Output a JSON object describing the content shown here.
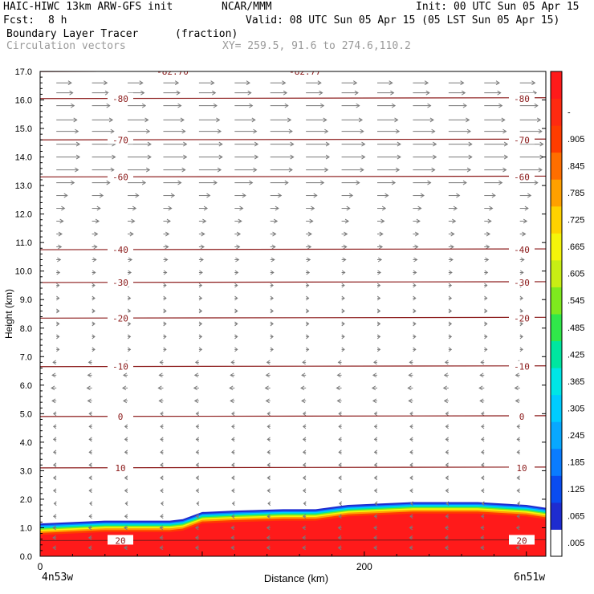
{
  "header": {
    "model": "HAIC-HIWC 13km ARW-GFS init",
    "org": "NCAR/MMM",
    "init": "Init: 00 UTC Sun 05 Apr 15",
    "fcst_label": "Fcst:",
    "fcst_value": "8 h",
    "valid": "Valid: 08 UTC Sun 05 Apr 15 (05 LST Sun 05 Apr 15)",
    "field": "Boundary Layer Tracer",
    "field_units": "(fraction)",
    "vectors": "Circulation vectors",
    "xy": "XY= 259.5, 91.6 to 274.6,110.2"
  },
  "colors": {
    "contour": "#8b1a1a",
    "vector": "#7a7a7a",
    "frame": "#000000"
  },
  "chart_data": {
    "type": "heatmap",
    "xlabel": "Distance (km)",
    "ylabel": "Height (km)",
    "xlim": [
      0,
      312
    ],
    "ylim": [
      0,
      17
    ],
    "x_ticks": [
      0,
      200
    ],
    "x_tick_labels": [
      "0",
      "200"
    ],
    "x_end_labels": [
      "4n53w",
      "6n51w"
    ],
    "y_ticks": [
      0.0,
      1.0,
      2.0,
      3.0,
      4.0,
      5.0,
      6.0,
      7.0,
      8.0,
      9.0,
      10.0,
      11.0,
      12.0,
      13.0,
      14.0,
      15.0,
      16.0,
      17.0
    ],
    "y_tick_labels": [
      "0.0",
      "1.0",
      "2.0",
      "3.0",
      "4.0",
      "5.0",
      "6.0",
      "7.0",
      "8.0",
      "9.0",
      "10.0",
      "11.0",
      "12.0",
      "13.0",
      "14.0",
      "15.0",
      "16.0",
      "17.0"
    ],
    "colorbar": {
      "labels": [
        ".005",
        ".065",
        ".125",
        ".185",
        ".245",
        ".305",
        ".365",
        ".425",
        ".485",
        ".545",
        ".605",
        ".665",
        ".725",
        ".785",
        ".845",
        ".905",
        "-"
      ],
      "colors": [
        "#ffffff",
        "#1e2cd0",
        "#0a4cf0",
        "#0a7cff",
        "#08a8ff",
        "#00ccff",
        "#00e6e6",
        "#00e6a0",
        "#30e84a",
        "#7eea1e",
        "#c8ee14",
        "#f5f50a",
        "#ffd200",
        "#ffa000",
        "#ff6e00",
        "#ff3c00",
        "#ff2a10",
        "#ff1a1a"
      ]
    },
    "tracer_top_km": {
      "x": [
        0,
        40,
        80,
        88,
        100,
        120,
        150,
        170,
        190,
        230,
        270,
        300,
        312
      ],
      "top": [
        1.15,
        1.25,
        1.25,
        1.3,
        1.55,
        1.6,
        1.65,
        1.65,
        1.8,
        1.9,
        1.9,
        1.8,
        1.7
      ]
    },
    "isotherms": [
      {
        "label": "-82.70",
        "y": 17.0
      },
      {
        "label": "-82.77",
        "y": 17.0
      },
      {
        "label": "-80",
        "y": 16.05
      },
      {
        "label": "-70",
        "y": 14.6
      },
      {
        "label": "-60",
        "y": 13.3
      },
      {
        "label": "-40",
        "y": 10.75
      },
      {
        "label": "-30",
        "y": 9.6
      },
      {
        "label": "-20",
        "y": 8.35
      },
      {
        "label": "-10",
        "y": 6.65
      },
      {
        "label": "0",
        "y": 4.9
      },
      {
        "label": "10",
        "y": 3.1
      },
      {
        "label": "20",
        "y": 0.55
      }
    ],
    "vector_rows": [
      {
        "y": 16.6,
        "u": 0.55
      },
      {
        "y": 16.25,
        "u": 0.6
      },
      {
        "y": 15.8,
        "u": 0.65
      },
      {
        "y": 15.3,
        "u": 0.75
      },
      {
        "y": 14.9,
        "u": 0.8
      },
      {
        "y": 14.45,
        "u": 0.85
      },
      {
        "y": 14.0,
        "u": 0.85
      },
      {
        "y": 13.55,
        "u": 0.8
      },
      {
        "y": 13.1,
        "u": 0.65
      },
      {
        "y": 12.65,
        "u": 0.4
      },
      {
        "y": 12.2,
        "u": 0.3
      },
      {
        "y": 11.75,
        "u": 0.25
      },
      {
        "y": 11.3,
        "u": 0.2
      },
      {
        "y": 10.85,
        "u": 0.18
      },
      {
        "y": 10.4,
        "u": 0.15
      },
      {
        "y": 9.95,
        "u": 0.12
      },
      {
        "y": 9.5,
        "u": 0.1
      },
      {
        "y": 9.05,
        "u": 0.1
      },
      {
        "y": 8.6,
        "u": 0.1
      },
      {
        "y": 8.15,
        "u": 0.1
      },
      {
        "y": 7.7,
        "u": 0.1
      },
      {
        "y": 7.25,
        "u": 0.1
      },
      {
        "y": 6.8,
        "u": -0.12
      },
      {
        "y": 6.35,
        "u": -0.15
      },
      {
        "y": 5.9,
        "u": -0.18
      },
      {
        "y": 5.45,
        "u": -0.15
      },
      {
        "y": 5.0,
        "u": -0.1
      },
      {
        "y": 4.55,
        "u": -0.1
      },
      {
        "y": 4.1,
        "u": -0.1
      },
      {
        "y": 3.65,
        "u": -0.1
      },
      {
        "y": 3.2,
        "u": -0.1
      },
      {
        "y": 2.75,
        "u": -0.1
      },
      {
        "y": 2.3,
        "u": -0.1
      },
      {
        "y": 1.85,
        "u": -0.08
      },
      {
        "y": 1.4,
        "u": -0.1
      },
      {
        "y": 1.0,
        "u": -0.12
      },
      {
        "y": 0.65,
        "u": -0.12
      },
      {
        "y": 0.3,
        "u": -0.12
      }
    ]
  }
}
